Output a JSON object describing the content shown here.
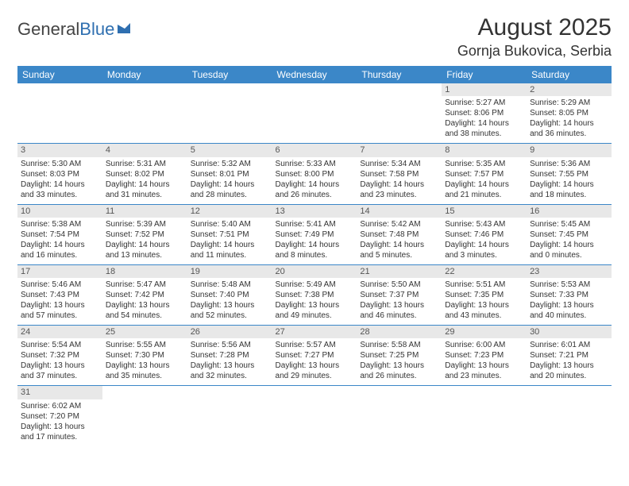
{
  "logo": {
    "part1": "General",
    "part2": "Blue"
  },
  "title": "August 2025",
  "location": "Gornja Bukovica, Serbia",
  "colors": {
    "header_bg": "#3b87c8",
    "header_fg": "#ffffff",
    "daynum_bg": "#e8e8e8",
    "border": "#3b87c8",
    "logo_blue": "#2f6fb0"
  },
  "weekdays": [
    "Sunday",
    "Monday",
    "Tuesday",
    "Wednesday",
    "Thursday",
    "Friday",
    "Saturday"
  ],
  "weeks": [
    [
      null,
      null,
      null,
      null,
      null,
      {
        "n": "1",
        "sr": "5:27 AM",
        "ss": "8:06 PM",
        "dl": "14 hours and 38 minutes."
      },
      {
        "n": "2",
        "sr": "5:29 AM",
        "ss": "8:05 PM",
        "dl": "14 hours and 36 minutes."
      }
    ],
    [
      {
        "n": "3",
        "sr": "5:30 AM",
        "ss": "8:03 PM",
        "dl": "14 hours and 33 minutes."
      },
      {
        "n": "4",
        "sr": "5:31 AM",
        "ss": "8:02 PM",
        "dl": "14 hours and 31 minutes."
      },
      {
        "n": "5",
        "sr": "5:32 AM",
        "ss": "8:01 PM",
        "dl": "14 hours and 28 minutes."
      },
      {
        "n": "6",
        "sr": "5:33 AM",
        "ss": "8:00 PM",
        "dl": "14 hours and 26 minutes."
      },
      {
        "n": "7",
        "sr": "5:34 AM",
        "ss": "7:58 PM",
        "dl": "14 hours and 23 minutes."
      },
      {
        "n": "8",
        "sr": "5:35 AM",
        "ss": "7:57 PM",
        "dl": "14 hours and 21 minutes."
      },
      {
        "n": "9",
        "sr": "5:36 AM",
        "ss": "7:55 PM",
        "dl": "14 hours and 18 minutes."
      }
    ],
    [
      {
        "n": "10",
        "sr": "5:38 AM",
        "ss": "7:54 PM",
        "dl": "14 hours and 16 minutes."
      },
      {
        "n": "11",
        "sr": "5:39 AM",
        "ss": "7:52 PM",
        "dl": "14 hours and 13 minutes."
      },
      {
        "n": "12",
        "sr": "5:40 AM",
        "ss": "7:51 PM",
        "dl": "14 hours and 11 minutes."
      },
      {
        "n": "13",
        "sr": "5:41 AM",
        "ss": "7:49 PM",
        "dl": "14 hours and 8 minutes."
      },
      {
        "n": "14",
        "sr": "5:42 AM",
        "ss": "7:48 PM",
        "dl": "14 hours and 5 minutes."
      },
      {
        "n": "15",
        "sr": "5:43 AM",
        "ss": "7:46 PM",
        "dl": "14 hours and 3 minutes."
      },
      {
        "n": "16",
        "sr": "5:45 AM",
        "ss": "7:45 PM",
        "dl": "14 hours and 0 minutes."
      }
    ],
    [
      {
        "n": "17",
        "sr": "5:46 AM",
        "ss": "7:43 PM",
        "dl": "13 hours and 57 minutes."
      },
      {
        "n": "18",
        "sr": "5:47 AM",
        "ss": "7:42 PM",
        "dl": "13 hours and 54 minutes."
      },
      {
        "n": "19",
        "sr": "5:48 AM",
        "ss": "7:40 PM",
        "dl": "13 hours and 52 minutes."
      },
      {
        "n": "20",
        "sr": "5:49 AM",
        "ss": "7:38 PM",
        "dl": "13 hours and 49 minutes."
      },
      {
        "n": "21",
        "sr": "5:50 AM",
        "ss": "7:37 PM",
        "dl": "13 hours and 46 minutes."
      },
      {
        "n": "22",
        "sr": "5:51 AM",
        "ss": "7:35 PM",
        "dl": "13 hours and 43 minutes."
      },
      {
        "n": "23",
        "sr": "5:53 AM",
        "ss": "7:33 PM",
        "dl": "13 hours and 40 minutes."
      }
    ],
    [
      {
        "n": "24",
        "sr": "5:54 AM",
        "ss": "7:32 PM",
        "dl": "13 hours and 37 minutes."
      },
      {
        "n": "25",
        "sr": "5:55 AM",
        "ss": "7:30 PM",
        "dl": "13 hours and 35 minutes."
      },
      {
        "n": "26",
        "sr": "5:56 AM",
        "ss": "7:28 PM",
        "dl": "13 hours and 32 minutes."
      },
      {
        "n": "27",
        "sr": "5:57 AM",
        "ss": "7:27 PM",
        "dl": "13 hours and 29 minutes."
      },
      {
        "n": "28",
        "sr": "5:58 AM",
        "ss": "7:25 PM",
        "dl": "13 hours and 26 minutes."
      },
      {
        "n": "29",
        "sr": "6:00 AM",
        "ss": "7:23 PM",
        "dl": "13 hours and 23 minutes."
      },
      {
        "n": "30",
        "sr": "6:01 AM",
        "ss": "7:21 PM",
        "dl": "13 hours and 20 minutes."
      }
    ],
    [
      {
        "n": "31",
        "sr": "6:02 AM",
        "ss": "7:20 PM",
        "dl": "13 hours and 17 minutes."
      },
      null,
      null,
      null,
      null,
      null,
      null
    ]
  ],
  "labels": {
    "sunrise": "Sunrise:",
    "sunset": "Sunset:",
    "daylight": "Daylight:"
  }
}
